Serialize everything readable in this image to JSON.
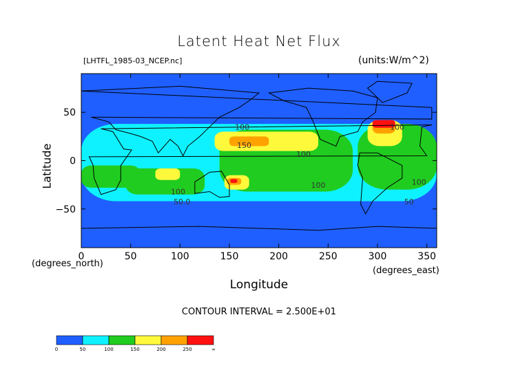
{
  "chart_data": {
    "type": "heatmap",
    "title": "Latent Heat Net Flux",
    "source_label": "[LHTFL_1985-03_NCEP.nc]",
    "units_label": "(units:W/m^2)",
    "xlabel": "Longitude",
    "ylabel": "Latitude",
    "x_unit_note": "(degrees_east)",
    "y_unit_note": "(degrees_north)",
    "xlim": [
      0,
      360
    ],
    "ylim": [
      -90,
      90
    ],
    "x_ticks": [
      "0",
      "50",
      "100",
      "150",
      "200",
      "250",
      "300",
      "350"
    ],
    "x_tick_values": [
      0,
      50,
      100,
      150,
      200,
      250,
      300,
      350
    ],
    "y_ticks": [
      "50",
      "0",
      "−50"
    ],
    "y_tick_values": [
      50,
      0,
      -50
    ],
    "contour_interval": "CONTOUR INTERVAL = 2.500E+01",
    "contour_labels": [
      {
        "text": "100",
        "lon": 163,
        "lat": 32
      },
      {
        "text": "150",
        "lon": 165,
        "lat": 13
      },
      {
        "text": "100",
        "lon": 225,
        "lat": 4
      },
      {
        "text": "100",
        "lon": 320,
        "lat": 32
      },
      {
        "text": "100",
        "lon": 240,
        "lat": -28
      },
      {
        "text": "100",
        "lon": 342,
        "lat": -25
      },
      {
        "text": "100",
        "lon": 98,
        "lat": -35
      },
      {
        "text": "50.0",
        "lon": 102,
        "lat": -45
      },
      {
        "text": "50",
        "lon": 332,
        "lat": -45
      }
    ],
    "colorbar": {
      "colors": [
        "#1f5fff",
        "#0ef2ff",
        "#20cc20",
        "#fff93b",
        "#ffa200",
        "#ff1111"
      ],
      "boundaries": [
        "0",
        "50",
        "100",
        "150",
        "200",
        "250",
        "∞"
      ]
    },
    "regions": [
      {
        "level": 1,
        "lon": [
          0,
          360
        ],
        "lat": [
          -58,
          58
        ]
      },
      {
        "level": 2,
        "lon": [
          0,
          360
        ],
        "lat": [
          -42,
          38
        ]
      },
      {
        "level": 3,
        "lon": [
          140,
          275
        ],
        "lat": [
          -32,
          32
        ]
      },
      {
        "level": 3,
        "lon": [
          45,
          125
        ],
        "lat": [
          -35,
          -8
        ]
      },
      {
        "level": 3,
        "lon": [
          0,
          60
        ],
        "lat": [
          -28,
          -5
        ]
      },
      {
        "level": 3,
        "lon": [
          280,
          360
        ],
        "lat": [
          -30,
          38
        ]
      },
      {
        "level": 4,
        "lon": [
          135,
          240
        ],
        "lat": [
          10,
          30
        ]
      },
      {
        "level": 4,
        "lon": [
          290,
          325
        ],
        "lat": [
          15,
          42
        ]
      },
      {
        "level": 4,
        "lon": [
          145,
          170
        ],
        "lat": [
          -30,
          -15
        ]
      },
      {
        "level": 4,
        "lon": [
          75,
          100
        ],
        "lat": [
          -20,
          -8
        ]
      },
      {
        "level": 5,
        "lon": [
          150,
          190
        ],
        "lat": [
          15,
          25
        ]
      },
      {
        "level": 5,
        "lon": [
          295,
          318
        ],
        "lat": [
          28,
          42
        ]
      },
      {
        "level": 5,
        "lon": [
          148,
          162
        ],
        "lat": [
          -25,
          -18
        ]
      },
      {
        "level": 6,
        "lon": [
          295,
          318
        ],
        "lat": [
          34,
          42
        ]
      },
      {
        "level": 6,
        "lon": [
          151,
          158
        ],
        "lat": [
          -23,
          -19
        ]
      }
    ],
    "land": [
      {
        "name": "North America",
        "points": [
          [
            190,
            70
          ],
          [
            230,
            75
          ],
          [
            275,
            72
          ],
          [
            300,
            65
          ],
          [
            298,
            50
          ],
          [
            285,
            40
          ],
          [
            280,
            30
          ],
          [
            262,
            25
          ],
          [
            258,
            15
          ],
          [
            242,
            22
          ],
          [
            235,
            40
          ],
          [
            228,
            55
          ],
          [
            205,
            62
          ]
        ]
      },
      {
        "name": "South America",
        "points": [
          [
            282,
            8
          ],
          [
            300,
            8
          ],
          [
            325,
            -5
          ],
          [
            325,
            -18
          ],
          [
            310,
            -28
          ],
          [
            295,
            -42
          ],
          [
            288,
            -55
          ],
          [
            283,
            -45
          ],
          [
            285,
            -18
          ],
          [
            280,
            -5
          ]
        ]
      },
      {
        "name": "Africa",
        "points": [
          [
            345,
            35
          ],
          [
            355,
            37
          ],
          [
            20,
            33
          ],
          [
            32,
            30
          ],
          [
            43,
            12
          ],
          [
            51,
            11
          ],
          [
            40,
            -5
          ],
          [
            40,
            -20
          ],
          [
            35,
            -30
          ],
          [
            20,
            -35
          ],
          [
            13,
            -18
          ],
          [
            12,
            -5
          ],
          [
            8,
            4
          ],
          [
            350,
            5
          ],
          [
            343,
            15
          ]
        ]
      },
      {
        "name": "Eurasia",
        "points": [
          [
            0,
            72
          ],
          [
            100,
            77
          ],
          [
            180,
            70
          ],
          [
            170,
            62
          ],
          [
            160,
            55
          ],
          [
            140,
            45
          ],
          [
            130,
            35
          ],
          [
            120,
            25
          ],
          [
            108,
            15
          ],
          [
            103,
            5
          ],
          [
            98,
            15
          ],
          [
            90,
            22
          ],
          [
            78,
            8
          ],
          [
            72,
            20
          ],
          [
            60,
            25
          ],
          [
            50,
            28
          ],
          [
            35,
            32
          ],
          [
            28,
            40
          ],
          [
            10,
            45
          ],
          [
            355,
            43
          ],
          [
            355,
            55
          ]
        ]
      },
      {
        "name": "Australia",
        "points": [
          [
            115,
            -22
          ],
          [
            130,
            -12
          ],
          [
            142,
            -11
          ],
          [
            150,
            -25
          ],
          [
            150,
            -37
          ],
          [
            140,
            -38
          ],
          [
            130,
            -32
          ],
          [
            115,
            -34
          ]
        ]
      },
      {
        "name": "Greenland",
        "points": [
          [
            305,
            60
          ],
          [
            330,
            70
          ],
          [
            335,
            80
          ],
          [
            300,
            82
          ],
          [
            290,
            75
          ]
        ]
      },
      {
        "name": "Antarctica",
        "points": [
          [
            0,
            -70
          ],
          [
            120,
            -68
          ],
          [
            240,
            -72
          ],
          [
            300,
            -68
          ],
          [
            360,
            -70
          ],
          [
            360,
            -90
          ],
          [
            0,
            -90
          ]
        ]
      }
    ]
  }
}
